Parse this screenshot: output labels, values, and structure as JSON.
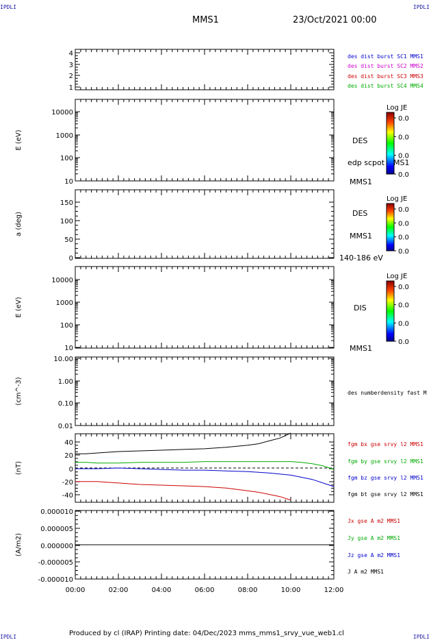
{
  "corners": {
    "top_left": "IPDLI",
    "top_right": "IPDLI",
    "bottom_left": "IPDLI",
    "bottom_right": "IPDLI"
  },
  "header": {
    "spacecraft": "MMS1",
    "date": "23/Oct/2021 00:00"
  },
  "footer": {
    "text": "Produced by cl (IRAP)   Printing date: 04/Dec/2023   mms_mms1_srvy_vue_web1.cl"
  },
  "time_axis": {
    "ticks": [
      "00:00",
      "02:00",
      "04:00",
      "06:00",
      "08:00",
      "10:00",
      "12:00"
    ],
    "range_hours": [
      0,
      12
    ]
  },
  "colors": {
    "blue": "#0000cc",
    "magenta": "#cc00cc",
    "red": "#cc0000",
    "green": "#00aa00",
    "black": "#000000"
  },
  "chart_data": [
    {
      "type": "line",
      "ylabel": "",
      "ylim": [
        0.8,
        4.2
      ],
      "yticks": [
        "4",
        "3",
        "2",
        "1"
      ],
      "legend": [
        "des dist burst SC1 MMS1",
        "des dist burst SC2 MMS2",
        "des dist burst SC3 MMS3",
        "des dist burst SC4 MMS4"
      ],
      "legend_colors": [
        "#0000cc",
        "#cc00cc",
        "#cc0000",
        "#00aa00"
      ],
      "series": []
    },
    {
      "type": "heatmap",
      "ylabel": "E (eV)",
      "yscale": "log",
      "ylim": [
        10,
        20000
      ],
      "yticks": [
        "10000",
        "1000",
        "100",
        "10"
      ],
      "side_labels": [
        "DES",
        "edp scpot MMS1",
        "MMS1"
      ],
      "colorbar": {
        "title": "Log JE",
        "labels": [
          "0.0",
          "0.0",
          "0.0",
          "0.0"
        ]
      }
    },
    {
      "type": "heatmap",
      "ylabel": "a (deg)",
      "ylim": [
        0,
        180
      ],
      "yticks": [
        "150",
        "100",
        "50",
        "0"
      ],
      "side_labels": [
        "DES",
        "MMS1",
        "140-186 eV"
      ],
      "colorbar": {
        "title": "Log JE",
        "labels": [
          "0.0",
          "0.0",
          "0.0",
          "0.0"
        ]
      }
    },
    {
      "type": "heatmap",
      "ylabel": "E (eV)",
      "yscale": "log",
      "ylim": [
        10,
        20000
      ],
      "yticks": [
        "10000",
        "1000",
        "100",
        "10"
      ],
      "side_labels": [
        "DIS",
        "MMS1"
      ],
      "colorbar": {
        "title": "Log JE",
        "labels": [
          "0.0",
          "0.0",
          "0.0",
          "0.0"
        ]
      }
    },
    {
      "type": "line",
      "ylabel": "(cm^-3)",
      "yscale": "log",
      "ylim": [
        0.01,
        10
      ],
      "yticks": [
        "10.00",
        "1.00",
        "0.10",
        "0.01"
      ],
      "legend": [
        "des numberdensity fast M"
      ],
      "legend_colors": [
        "#000000"
      ],
      "series": []
    },
    {
      "type": "line",
      "ylabel": "(nT)",
      "ylim": [
        -48,
        48
      ],
      "yticks": [
        "40",
        "20",
        "0",
        "-20",
        "-40"
      ],
      "legend": [
        "fgm bx gse srvy l2 MMS1",
        "fgm by gse srvy l2 MMS1",
        "fgm bz gse srvy l2 MMS1",
        "fgm bt gse srvy l2 MMS1"
      ],
      "legend_colors": [
        "#cc0000",
        "#00aa00",
        "#0000cc",
        "#000000"
      ],
      "series": [
        {
          "name": "fgm bt gse srvy l2 MMS1",
          "color": "#000000",
          "x": [
            0,
            0.5,
            1,
            2,
            3,
            4,
            5,
            6,
            7,
            8,
            8.5,
            9,
            9.5,
            10
          ],
          "y": [
            20,
            20,
            21,
            23,
            24,
            25,
            26,
            27,
            29,
            32,
            34,
            38,
            42,
            49
          ]
        },
        {
          "name": "fgm by gse srvy l2 MMS1",
          "color": "#00aa00",
          "x": [
            0,
            0.5,
            1,
            2,
            3,
            4,
            5,
            6,
            7,
            8,
            9,
            10,
            10.5,
            11,
            11.5,
            12
          ],
          "y": [
            8,
            8,
            7,
            7,
            8,
            8,
            8,
            9,
            9,
            9,
            9,
            9,
            8,
            6,
            3,
            -2
          ]
        },
        {
          "name": "fgm bz gse srvy l2 MMS1",
          "color": "#0000cc",
          "x": [
            0,
            1,
            2,
            3,
            4,
            5,
            6,
            7,
            8,
            9,
            10,
            10.5,
            11,
            11.5,
            12
          ],
          "y": [
            -1,
            -1,
            0,
            -1,
            -2,
            -3,
            -3,
            -4,
            -5,
            -7,
            -10,
            -13,
            -16,
            -21,
            -26
          ]
        },
        {
          "name": "fgm bx gse srvy l2 MMS1",
          "color": "#cc0000",
          "x": [
            0,
            1,
            2,
            3,
            4,
            5,
            6,
            7,
            8,
            8.5,
            9,
            9.5,
            10
          ],
          "y": [
            -19,
            -19,
            -21,
            -23,
            -24,
            -25,
            -26,
            -28,
            -32,
            -34,
            -37,
            -40,
            -45
          ]
        }
      ],
      "reference_line": {
        "y": 0,
        "style": "dashed"
      }
    },
    {
      "type": "line",
      "ylabel": "(A/m2)",
      "ylim": [
        -1e-05,
        1e-05
      ],
      "yticks": [
        "0.000010",
        "0.000005",
        "0.000000",
        "-0.000005",
        "-0.000010"
      ],
      "legend": [
        "Jx gse A m2 MMS1",
        "Jy gse A m2 MMS1",
        "Jz gse A m2 MMS1",
        "J A m2 MMS1"
      ],
      "legend_colors": [
        "#cc0000",
        "#00aa00",
        "#0000cc",
        "#000000"
      ],
      "series": [
        {
          "name": "J A m2 MMS1",
          "color": "#000000",
          "x": [
            0,
            12
          ],
          "y": [
            0,
            0
          ]
        }
      ]
    }
  ]
}
